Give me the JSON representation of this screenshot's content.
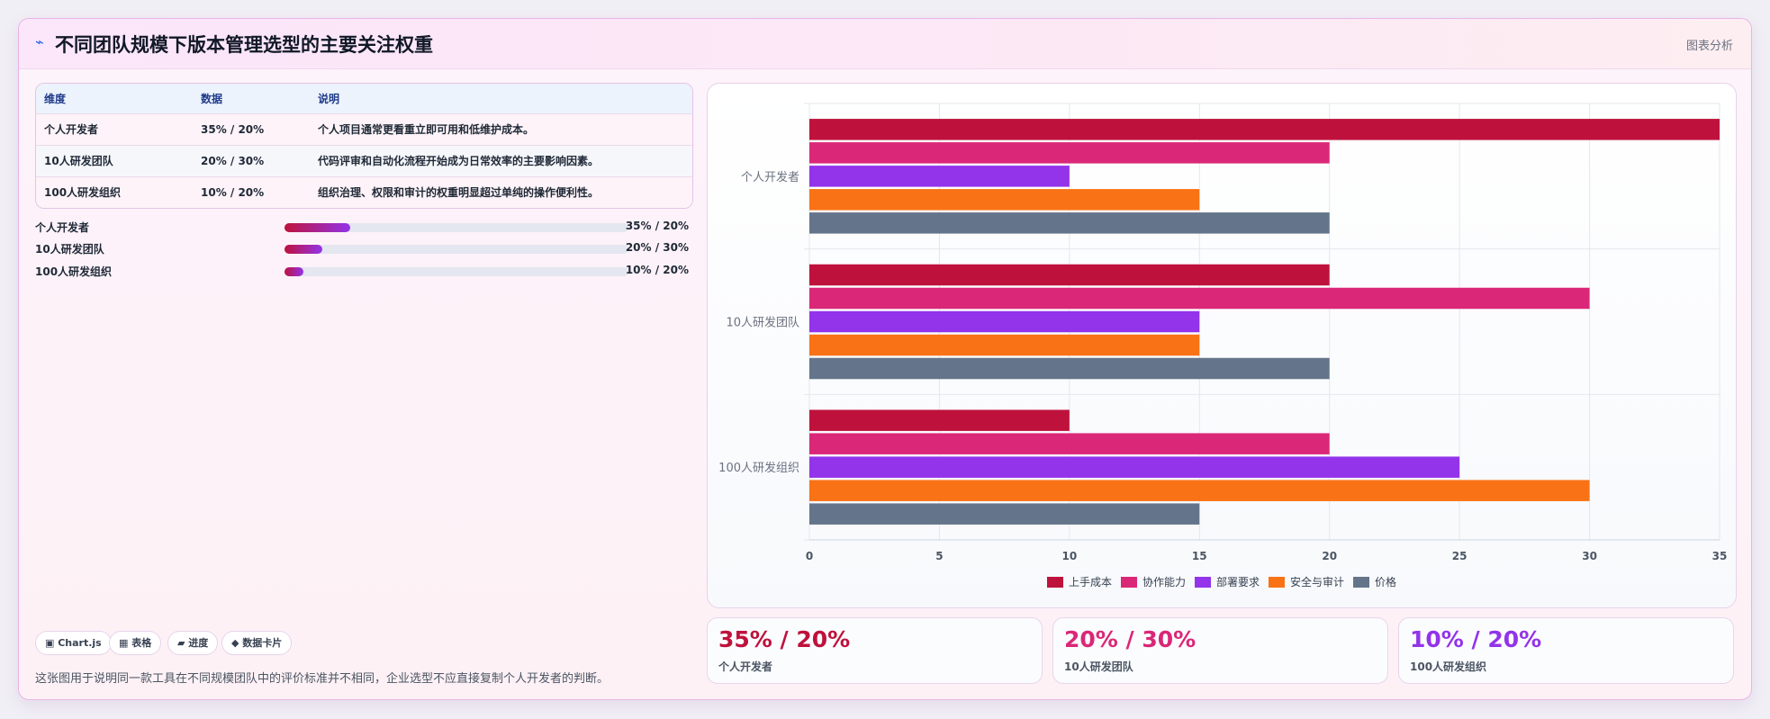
{
  "header": {
    "icon": "chart-icon",
    "title": "不同团队规模下版本管理选型的主要关注权重",
    "badge": "图表分析"
  },
  "table": {
    "columns": [
      "维度",
      "数据",
      "说明"
    ],
    "rows": [
      [
        "个人开发者",
        "35% / 20%",
        "个人项目通常更看重立即可用和低维护成本。"
      ],
      [
        "10人研发团队",
        "20% / 30%",
        "代码评审和自动化流程开始成为日常效率的主要影响因素。"
      ],
      [
        "100人研发组织",
        "10% / 20%",
        "组织治理、权限和审计的权重明显超过单纯的操作便利性。"
      ]
    ]
  },
  "progress": [
    {
      "label": "个人开发者",
      "value": "35% / 20%",
      "fraction": 0.19
    },
    {
      "label": "10人研发团队",
      "value": "20% / 30%",
      "fraction": 0.11
    },
    {
      "label": "100人研发组织",
      "value": "10% / 20%",
      "fraction": 0.055
    }
  ],
  "chips": [
    "▣ Chart.js",
    "▦ 表格",
    "▰ 进度",
    "◆ 数据卡片"
  ],
  "footnote": "这张图用于说明同一款工具在不同规模团队中的评价标准并不相同，企业选型不应直接复制个人开发者的判断。",
  "cards": [
    {
      "big": "35% / 20%",
      "sub": "个人开发者",
      "color": "#be123c"
    },
    {
      "big": "20% / 30%",
      "sub": "10人研发团队",
      "color": "#db2777"
    },
    {
      "big": "10% / 20%",
      "sub": "100人研发组织",
      "color": "#9333ea"
    }
  ],
  "chart_data": {
    "type": "bar",
    "orientation": "horizontal",
    "categories": [
      "个人开发者",
      "10人研发团队",
      "100人研发组织"
    ],
    "series": [
      {
        "name": "上手成本",
        "color": "#be123c",
        "values": [
          35,
          20,
          10
        ]
      },
      {
        "name": "协作能力",
        "color": "#db2777",
        "values": [
          20,
          30,
          20
        ]
      },
      {
        "name": "部署要求",
        "color": "#9333ea",
        "values": [
          10,
          15,
          25
        ]
      },
      {
        "name": "安全与审计",
        "color": "#f97316",
        "values": [
          15,
          15,
          30
        ]
      },
      {
        "name": "价格",
        "color": "#64748b",
        "values": [
          20,
          20,
          15
        ]
      }
    ],
    "xlim": [
      0,
      35
    ],
    "xticks": [
      0,
      5,
      10,
      15,
      20,
      25,
      30,
      35
    ],
    "grid": true,
    "legend_position": "bottom"
  }
}
